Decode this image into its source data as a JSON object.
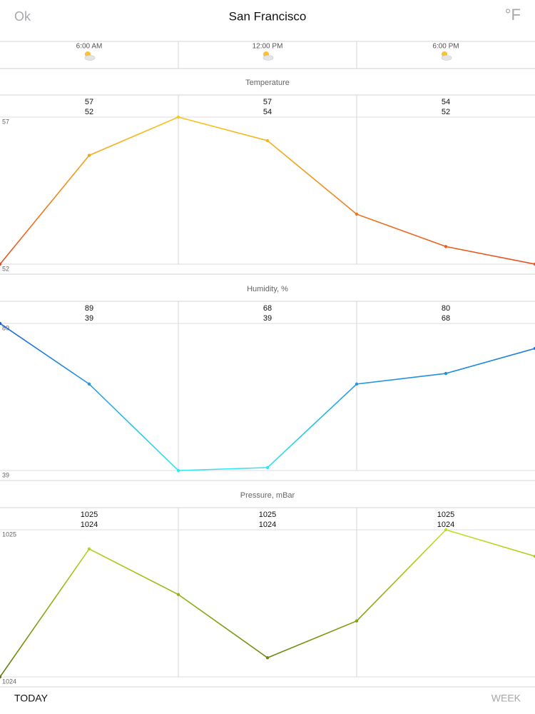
{
  "header": {
    "left": "Ok",
    "title": "San Francisco",
    "unit": "°F"
  },
  "times": [
    "6:00 AM",
    "12:00 PM",
    "6:00 PM"
  ],
  "chart_data": [
    {
      "type": "line",
      "title": "Temperature",
      "values": [
        52,
        55.7,
        57,
        56.2,
        53.7,
        52.6,
        52
      ],
      "ylim": [
        52,
        57
      ],
      "yticks": [
        52,
        57
      ],
      "grid": true,
      "color_low": "#e8501e",
      "color_high": "#f6c61c",
      "summary": [
        {
          "high": 57,
          "low": 52
        },
        {
          "high": 57,
          "low": 54
        },
        {
          "high": 54,
          "low": 52
        }
      ]
    },
    {
      "type": "line",
      "title": "Humidity, %",
      "values": [
        89,
        68.4,
        39,
        40,
        68.4,
        72,
        80.5
      ],
      "ylim": [
        39,
        89
      ],
      "yticks": [
        39,
        89
      ],
      "grid": true,
      "color_low": "#2ee8f2",
      "color_high": "#1a62d4",
      "summary": [
        {
          "high": 89,
          "low": 39
        },
        {
          "high": 68,
          "low": 39
        },
        {
          "high": 80,
          "low": 68
        }
      ]
    },
    {
      "type": "line",
      "title": "Pressure, mBar",
      "values": [
        1024,
        1024.87,
        1024.56,
        1024.13,
        1024.38,
        1025,
        1024.82
      ],
      "ylim": [
        1024,
        1025
      ],
      "yticks": [
        1024,
        1025
      ],
      "grid": true,
      "color_low": "#5f7a0c",
      "color_high": "#bde322",
      "summary": [
        {
          "high": 1025,
          "low": 1024
        },
        {
          "high": 1025,
          "low": 1024
        },
        {
          "high": 1025,
          "low": 1024
        }
      ]
    }
  ],
  "footer": {
    "left": "TODAY",
    "right": "WEEK"
  }
}
